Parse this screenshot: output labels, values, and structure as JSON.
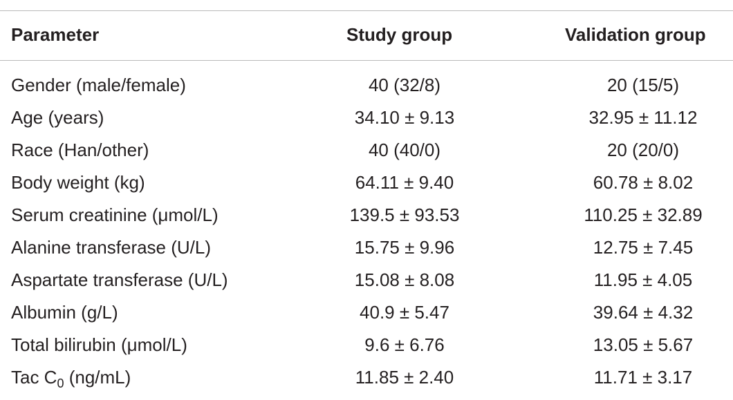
{
  "table": {
    "headers": {
      "parameter": "Parameter",
      "study": "Study group",
      "validation": "Validation group"
    },
    "rows": [
      {
        "parameter": "Gender (male/female)",
        "study": "40 (32/8)",
        "validation": "20 (15/5)"
      },
      {
        "parameter": "Age (years)",
        "study": "34.10 ± 9.13",
        "validation": "32.95 ± 11.12"
      },
      {
        "parameter": "Race (Han/other)",
        "study": "40 (40/0)",
        "validation": "20 (20/0)"
      },
      {
        "parameter": "Body weight (kg)",
        "study": "64.11 ± 9.40",
        "validation": "60.78 ± 8.02"
      },
      {
        "parameter": "Serum creatinine (μmol/L)",
        "study": "139.5 ± 93.53",
        "validation": "110.25 ± 32.89"
      },
      {
        "parameter": "Alanine transferase (U/L)",
        "study": "15.75 ± 9.96",
        "validation": "12.75 ± 7.45"
      },
      {
        "parameter": "Aspartate transferase (U/L)",
        "study": "15.08 ± 8.08",
        "validation": "11.95 ± 4.05"
      },
      {
        "parameter": "Albumin (g/L)",
        "study": "40.9 ± 5.47",
        "validation": "39.64 ± 4.32"
      },
      {
        "parameter": "Total bilirubin (μmol/L)",
        "study": "9.6 ± 6.76",
        "validation": "13.05 ± 5.67"
      },
      {
        "parameter_prefix": "Tac C",
        "parameter_sub": "0",
        "parameter_suffix": " (ng/mL)",
        "study": "11.85 ± 2.40",
        "validation": "11.71 ± 3.17"
      }
    ]
  }
}
